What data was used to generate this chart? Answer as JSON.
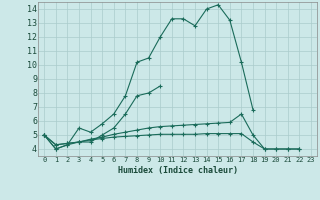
{
  "title": "",
  "xlabel": "Humidex (Indice chaleur)",
  "xlim": [
    -0.5,
    23.5
  ],
  "ylim": [
    3.5,
    14.5
  ],
  "yticks": [
    4,
    5,
    6,
    7,
    8,
    9,
    10,
    11,
    12,
    13,
    14
  ],
  "xticks": [
    0,
    1,
    2,
    3,
    4,
    5,
    6,
    7,
    8,
    9,
    10,
    11,
    12,
    13,
    14,
    15,
    16,
    17,
    18,
    19,
    20,
    21,
    22,
    23
  ],
  "background_color": "#cce8e8",
  "grid_color": "#aacccc",
  "line_color": "#1a6b5a",
  "series": [
    [
      5.0,
      4.0,
      4.3,
      5.5,
      5.2,
      5.8,
      6.5,
      7.8,
      10.2,
      10.5,
      12.0,
      13.3,
      13.3,
      12.8,
      14.0,
      14.3,
      13.2,
      10.2,
      6.8,
      null,
      null,
      null,
      null,
      null
    ],
    [
      5.0,
      4.0,
      4.3,
      4.5,
      4.5,
      5.0,
      5.5,
      6.5,
      7.8,
      8.0,
      8.5,
      null,
      null,
      null,
      null,
      null,
      null,
      null,
      null,
      null,
      null,
      null,
      null,
      null
    ],
    [
      5.0,
      4.3,
      4.4,
      4.5,
      4.7,
      4.85,
      5.05,
      5.2,
      5.35,
      5.5,
      5.6,
      5.65,
      5.7,
      5.75,
      5.8,
      5.85,
      5.9,
      6.5,
      5.0,
      4.0,
      4.0,
      4.0,
      4.0,
      null
    ],
    [
      5.0,
      4.3,
      4.4,
      4.5,
      4.65,
      4.75,
      4.85,
      4.9,
      4.95,
      5.0,
      5.05,
      5.05,
      5.05,
      5.05,
      5.1,
      5.1,
      5.1,
      5.1,
      4.5,
      4.0,
      4.0,
      4.0,
      4.0,
      null
    ]
  ]
}
